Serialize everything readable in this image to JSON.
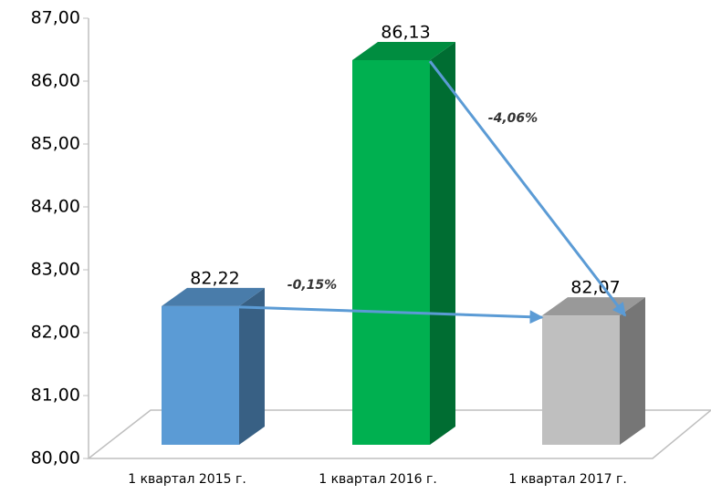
{
  "chart_data": {
    "type": "bar3d",
    "categories": [
      "1 квартал 2015 г.",
      "1 квартал 2016 г.",
      "1 квартал 2017 г."
    ],
    "values": [
      82.22,
      86.13,
      82.07
    ],
    "value_labels": [
      "82,22",
      "86,13",
      "82,07"
    ],
    "colors": [
      "#5b9bd5",
      "#00b050",
      "#bfbfbf"
    ],
    "ylim": [
      80,
      87
    ],
    "yticks": [
      {
        "value": 80,
        "label": "80,00"
      },
      {
        "value": 81,
        "label": "81,00"
      },
      {
        "value": 82,
        "label": "82,00"
      },
      {
        "value": 83,
        "label": "83,00"
      },
      {
        "value": 84,
        "label": "84,00"
      },
      {
        "value": 85,
        "label": "85,00"
      },
      {
        "value": 86,
        "label": "86,00"
      },
      {
        "value": 87,
        "label": "87,00"
      }
    ],
    "annotations": [
      "-0,15%",
      "-4,06%"
    ]
  }
}
